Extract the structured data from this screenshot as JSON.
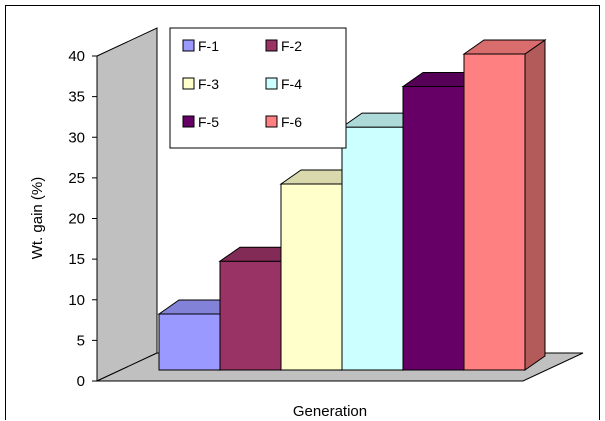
{
  "chart_data": {
    "type": "bar",
    "categories": [
      "F-1",
      "F-2",
      "F-3",
      "F-4",
      "F-5",
      "F-6"
    ],
    "series": [
      {
        "name": "F-1",
        "value": 8,
        "color": "#9999ff"
      },
      {
        "name": "F-2",
        "value": 14.5,
        "color": "#993366"
      },
      {
        "name": "F-3",
        "value": 24,
        "color": "#ffffcc"
      },
      {
        "name": "F-4",
        "value": 31,
        "color": "#ccffff"
      },
      {
        "name": "F-5",
        "value": 36,
        "color": "#660066"
      },
      {
        "name": "F-6",
        "value": 40,
        "color": "#ff8080"
      }
    ],
    "xlabel": "Generation",
    "ylabel": "Wt. gain (%)",
    "ylim": [
      0,
      40
    ],
    "yticks": [
      "0",
      "5",
      "10",
      "15",
      "20",
      "25",
      "30",
      "35",
      "40"
    ],
    "grid": false,
    "legend_position": "top-left",
    "three_d": true,
    "wall_color": "#c0c0c0",
    "floor_color": "#c0c0c0"
  }
}
